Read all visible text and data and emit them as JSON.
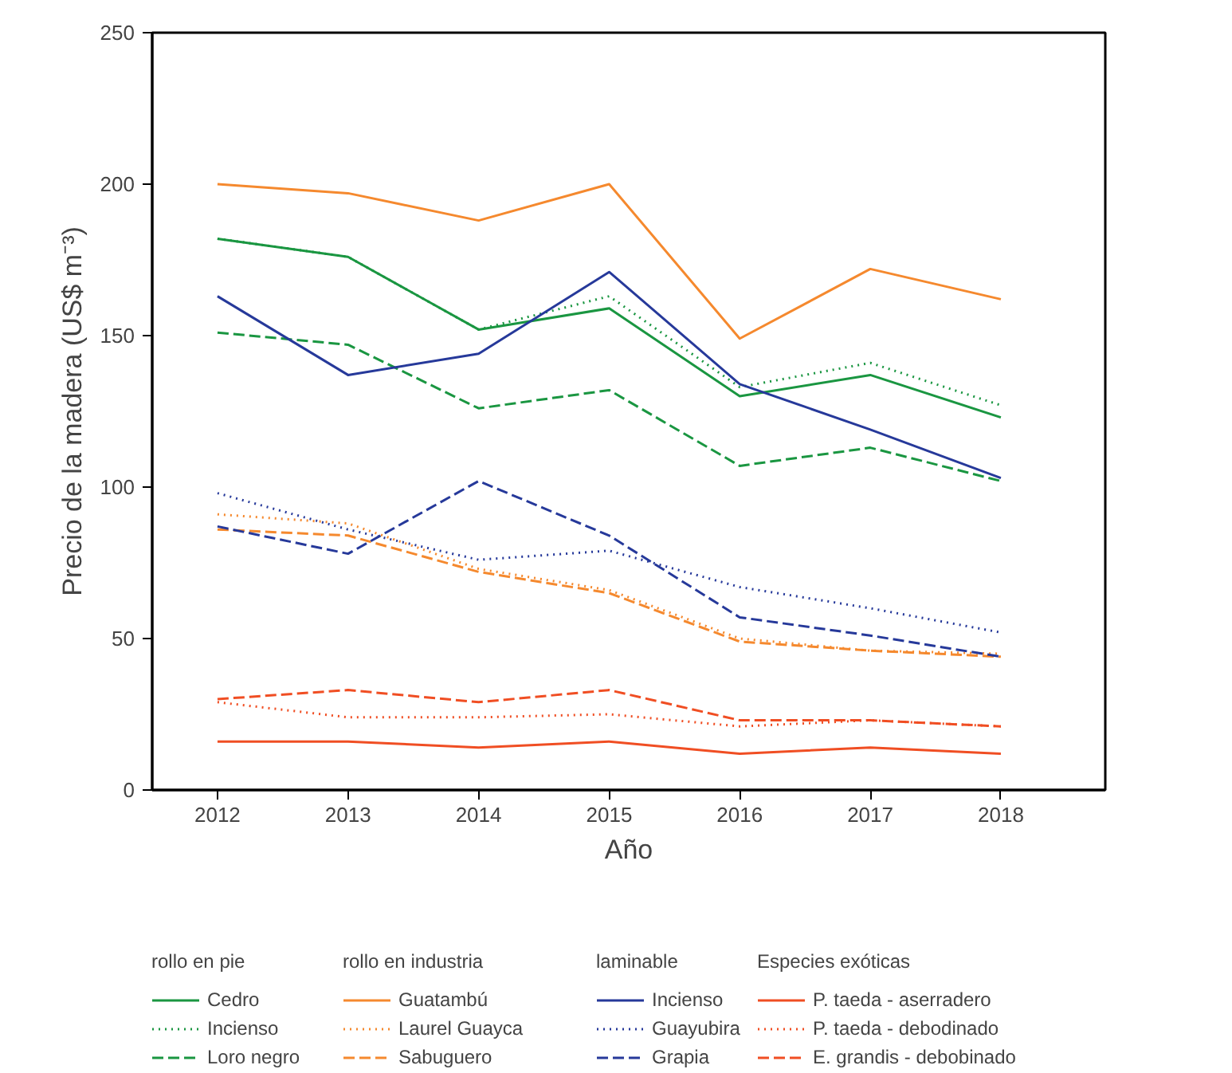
{
  "chart_data": {
    "type": "line",
    "xlabel": "Año",
    "ylabel": "Precio de la madera (US$ m⁻³)",
    "x": [
      2012,
      2013,
      2014,
      2015,
      2016,
      2017,
      2018
    ],
    "xlim": [
      2011.5,
      2018.8
    ],
    "xticks": [
      2012,
      2013,
      2014,
      2015,
      2016,
      2017,
      2018
    ],
    "ylim": [
      0,
      250
    ],
    "yticks": [
      0,
      50,
      100,
      150,
      200,
      250
    ],
    "grid": false,
    "legend": "bottom",
    "marker": "none",
    "annotations": [
      "rollo en pie",
      "rollo en industria",
      "laminable",
      "Especies exóticas"
    ],
    "series": [
      {
        "name": "Cedro",
        "color": "#1a9641",
        "line_style": "solid",
        "values": [
          182,
          176,
          152,
          159,
          130,
          137,
          123
        ]
      },
      {
        "name": "Incienso",
        "color": "#1a9641",
        "line_style": "dotted",
        "values": [
          182,
          176,
          152,
          163,
          133,
          141,
          127
        ]
      },
      {
        "name": "Loro negro",
        "color": "#1a9641",
        "line_style": "dashed",
        "values": [
          151,
          147,
          126,
          132,
          107,
          113,
          102
        ]
      },
      {
        "name": "Guatambú",
        "color": "#f5892e",
        "line_style": "solid",
        "values": [
          200,
          197,
          188,
          200,
          149,
          172,
          162
        ]
      },
      {
        "name": "Laurel Guayca",
        "color": "#f5892e",
        "line_style": "dotted",
        "values": [
          91,
          88,
          73,
          66,
          50,
          46,
          45
        ]
      },
      {
        "name": "Sabuguero",
        "color": "#f5892e",
        "line_style": "dashed",
        "values": [
          86,
          84,
          72,
          65,
          49,
          46,
          44
        ]
      },
      {
        "name": "Incienso",
        "color": "#26399a",
        "line_style": "solid",
        "values": [
          163,
          137,
          144,
          171,
          134,
          119,
          103
        ]
      },
      {
        "name": "Guayubira",
        "color": "#26399a",
        "line_style": "dotted",
        "values": [
          98,
          86,
          76,
          79,
          67,
          60,
          52
        ]
      },
      {
        "name": "Grapia",
        "color": "#26399a",
        "line_style": "dashed",
        "values": [
          87,
          78,
          102,
          84,
          57,
          51,
          44
        ]
      },
      {
        "name": "P. taeda - aserradero",
        "color": "#f04e23",
        "line_style": "solid",
        "values": [
          16,
          16,
          14,
          16,
          12,
          14,
          12
        ]
      },
      {
        "name": "P. taeda - debodinado",
        "color": "#f04e23",
        "line_style": "dotted",
        "values": [
          29,
          24,
          24,
          25,
          21,
          23,
          21
        ]
      },
      {
        "name": "E. grandis - debobinado",
        "color": "#f04e23",
        "line_style": "dashed",
        "values": [
          30,
          33,
          29,
          33,
          23,
          23,
          21
        ]
      }
    ]
  }
}
